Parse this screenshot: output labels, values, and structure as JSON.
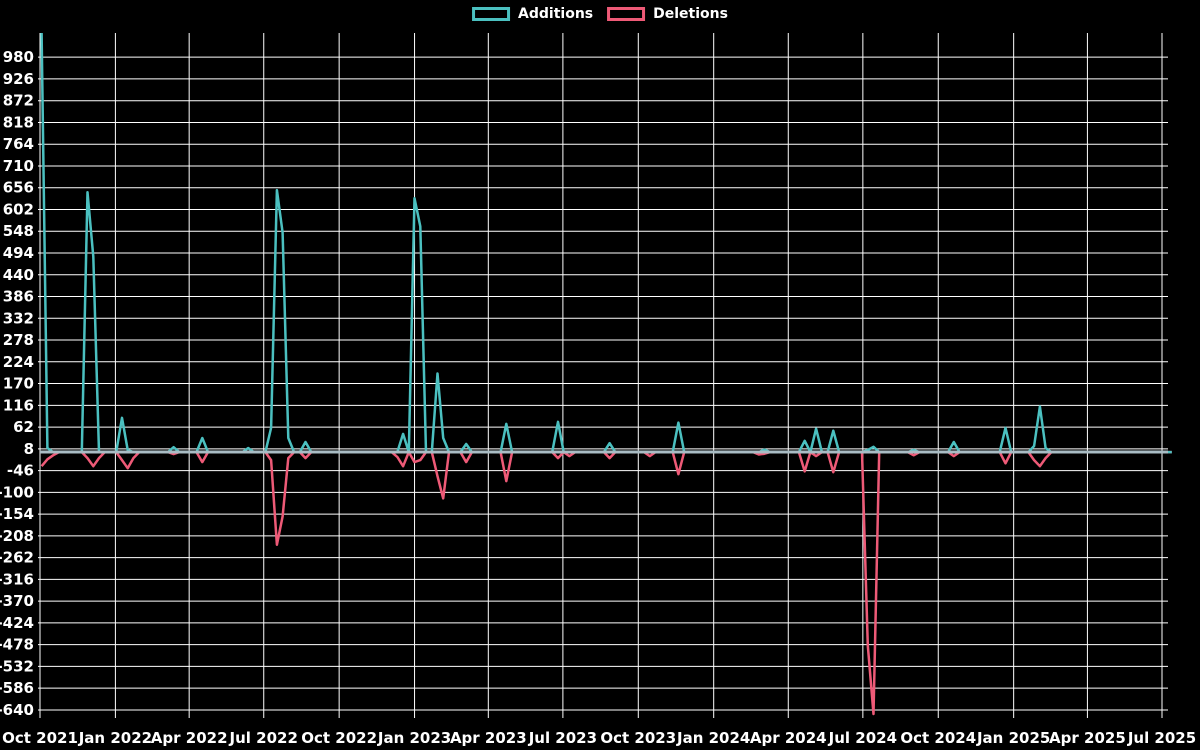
{
  "colors": {
    "background": "#000000",
    "grid": "#ffffff",
    "text": "#ffffff",
    "zero_line": "#a9bcc4",
    "additions": "#4bc0c0",
    "deletions": "#ee5a77"
  },
  "legend": {
    "items": [
      {
        "label": "Additions",
        "color": "#4bc0c0"
      },
      {
        "label": "Deletions",
        "color": "#ee5a77"
      }
    ]
  },
  "chart_data": {
    "type": "line",
    "title": "",
    "xlabel": "",
    "ylabel": "",
    "grid": true,
    "legend_position": "top-center",
    "interval": "weekly",
    "start": "2021-10-03",
    "end": "2025-07-13",
    "baseline": 0,
    "ylim": [
      -660,
      1040
    ],
    "y_axis": {
      "ticks": [
        980,
        926,
        872,
        818,
        764,
        710,
        656,
        602,
        548,
        494,
        440,
        386,
        332,
        278,
        224,
        170,
        116,
        62,
        8,
        -46,
        -100,
        -154,
        -208,
        -262,
        -316,
        -370,
        -424,
        -478,
        -532,
        -586,
        -640
      ]
    },
    "x_axis": {
      "ticks": [
        {
          "label": "Oct 2021",
          "date": "2021-10-01"
        },
        {
          "label": "Jan 2022",
          "date": "2022-01-01"
        },
        {
          "label": "Apr 2022",
          "date": "2022-04-01"
        },
        {
          "label": "Jul 2022",
          "date": "2022-07-01"
        },
        {
          "label": "Oct 2022",
          "date": "2022-10-01"
        },
        {
          "label": "Jan 2023",
          "date": "2023-01-01"
        },
        {
          "label": "Apr 2023",
          "date": "2023-04-01"
        },
        {
          "label": "Jul 2023",
          "date": "2023-07-01"
        },
        {
          "label": "Oct 2023",
          "date": "2023-10-01"
        },
        {
          "label": "Jan 2024",
          "date": "2024-01-01"
        },
        {
          "label": "Apr 2024",
          "date": "2024-04-01"
        },
        {
          "label": "Jul 2024",
          "date": "2024-07-01"
        },
        {
          "label": "Oct 2024",
          "date": "2024-10-01"
        },
        {
          "label": "Jan 2025",
          "date": "2025-01-01"
        },
        {
          "label": "Apr 2025",
          "date": "2025-04-01"
        },
        {
          "label": "Jul 2025",
          "date": "2025-07-01"
        }
      ]
    },
    "series": [
      {
        "name": "Additions",
        "color": "#4bc0c0",
        "default_value": 0,
        "points": {
          "2021-10-03": 1040,
          "2021-10-10": 10,
          "2021-11-28": 645,
          "2021-12-05": 485,
          "2022-01-09": 85,
          "2022-01-16": 5,
          "2022-03-13": 12,
          "2022-04-17": 35,
          "2022-06-12": 10,
          "2022-07-10": 60,
          "2022-07-17": 650,
          "2022-07-24": 545,
          "2022-07-31": 35,
          "2022-08-21": 25,
          "2022-12-18": 45,
          "2023-01-01": 630,
          "2023-01-08": 560,
          "2023-01-29": 195,
          "2023-02-05": 35,
          "2023-03-05": 20,
          "2023-04-23": 70,
          "2023-06-25": 75,
          "2023-08-27": 22,
          "2023-11-19": 73,
          "2024-03-03": 6,
          "2024-04-21": 28,
          "2024-05-05": 58,
          "2024-05-26": 53,
          "2024-07-07": 5,
          "2024-07-14": 13,
          "2024-09-01": 5,
          "2024-10-20": 25,
          "2024-12-22": 60,
          "2025-01-26": 15,
          "2025-02-02": 113,
          "2025-02-09": 10
        }
      },
      {
        "name": "Deletions",
        "color": "#ee5a77",
        "default_value": 0,
        "points": {
          "2021-10-03": -35,
          "2021-10-10": -18,
          "2021-10-17": -8,
          "2021-11-28": -15,
          "2021-12-05": -35,
          "2021-12-12": -15,
          "2022-01-09": -20,
          "2022-01-16": -40,
          "2022-01-23": -15,
          "2022-03-13": -5,
          "2022-04-17": -25,
          "2022-07-10": -20,
          "2022-07-17": -230,
          "2022-07-24": -160,
          "2022-07-31": -15,
          "2022-08-21": -15,
          "2022-12-11": -12,
          "2022-12-18": -35,
          "2023-01-01": -25,
          "2023-01-08": -20,
          "2023-01-29": -60,
          "2023-02-05": -115,
          "2023-03-05": -25,
          "2023-04-23": -72,
          "2023-06-25": -15,
          "2023-07-09": -10,
          "2023-08-27": -15,
          "2023-10-15": -10,
          "2023-11-19": -55,
          "2024-02-25": -6,
          "2024-03-03": -4,
          "2024-04-21": -48,
          "2024-05-05": -10,
          "2024-05-26": -50,
          "2024-07-07": -480,
          "2024-07-14": -650,
          "2024-09-01": -8,
          "2024-10-20": -10,
          "2024-12-22": -28,
          "2025-01-26": -20,
          "2025-02-02": -35,
          "2025-02-09": -15
        }
      }
    ]
  }
}
